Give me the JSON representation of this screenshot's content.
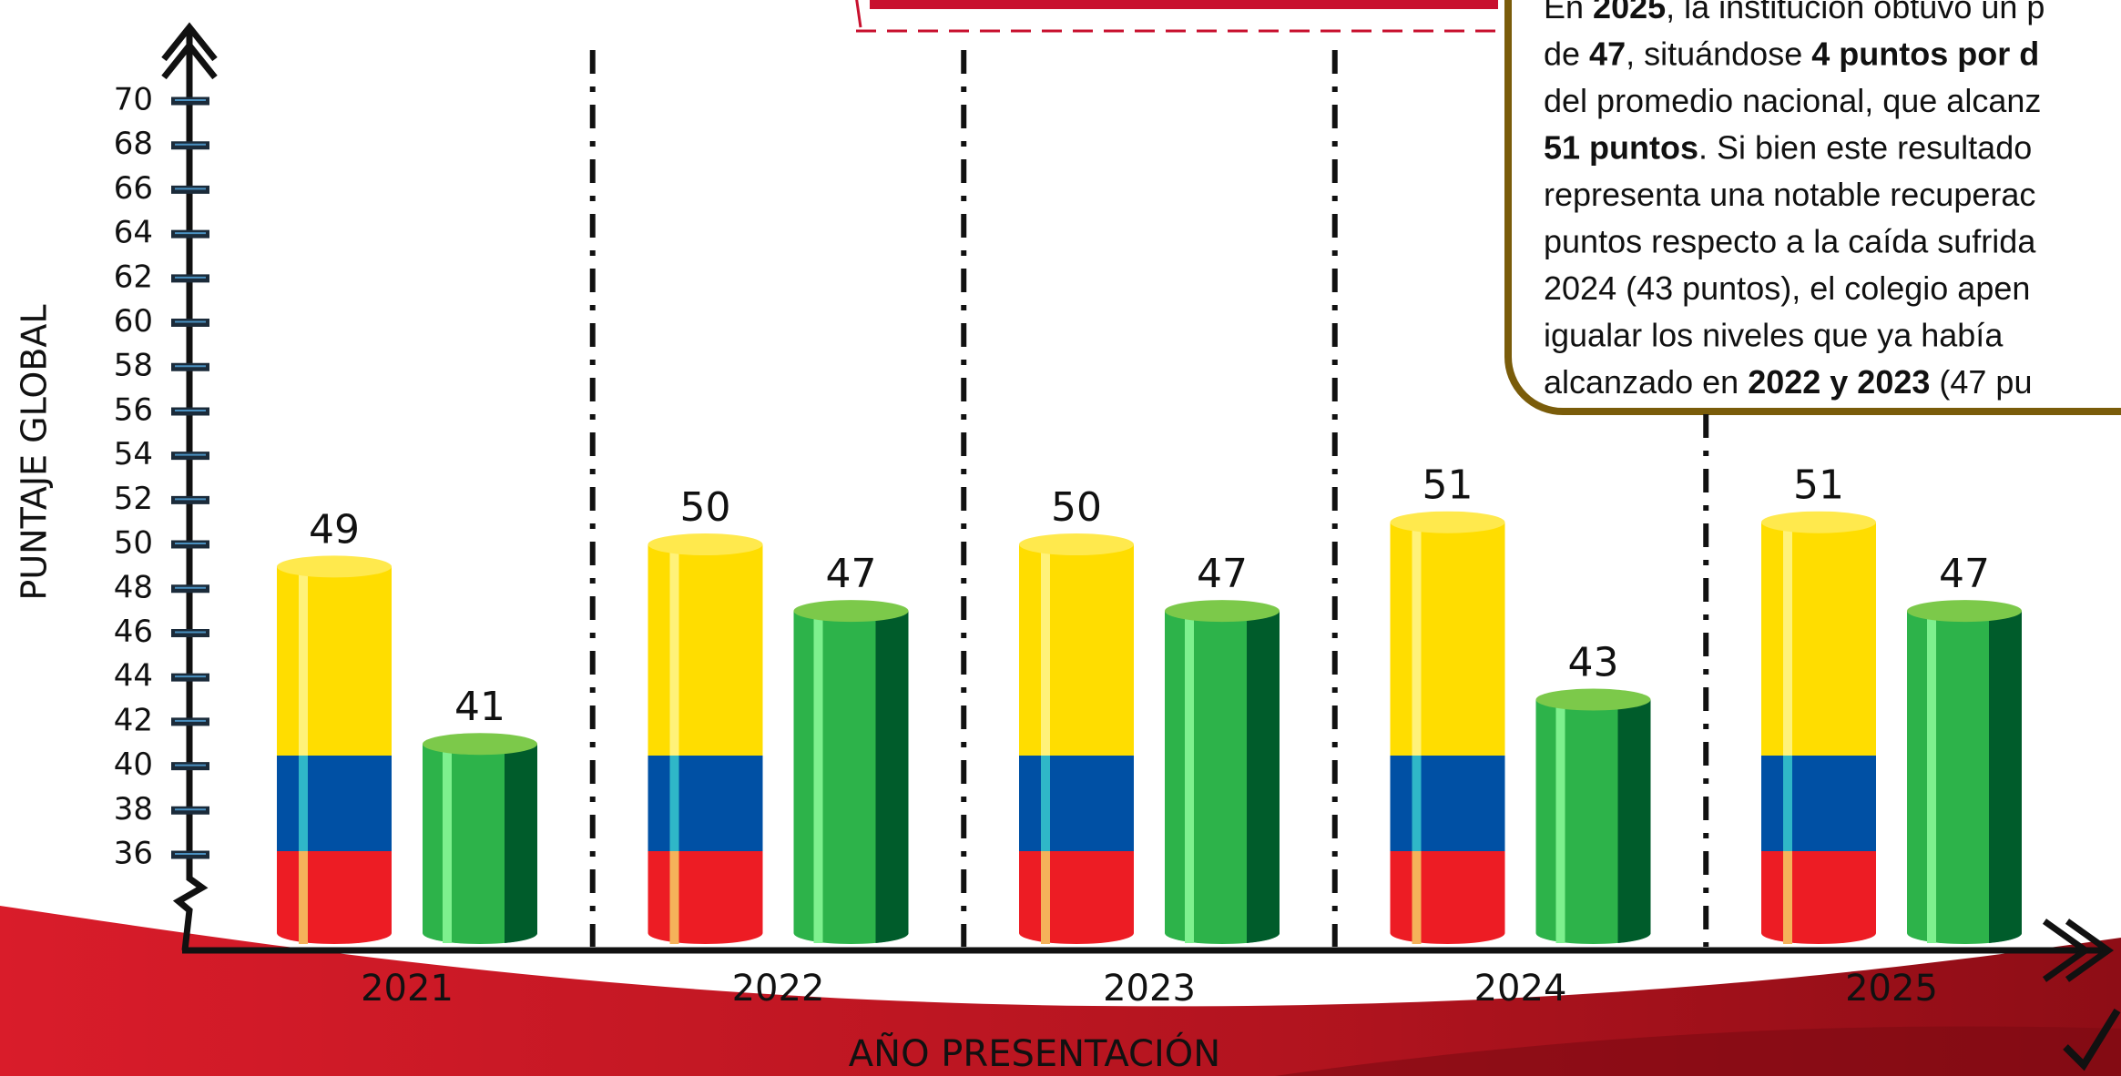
{
  "chart_data": {
    "type": "bar",
    "y_label": "PUNTAJE GLOBAL",
    "x_label": "AÑO PRESENTACIÓN",
    "categories": [
      "2021",
      "2022",
      "2023",
      "2024",
      "2025"
    ],
    "series": [
      {
        "color": "#ffdd00",
        "values": [
          49,
          50,
          50,
          51,
          51
        ]
      },
      {
        "color": "#2db34a",
        "values": [
          41,
          47,
          47,
          43,
          47
        ]
      }
    ],
    "ylim": [
      36,
      70
    ],
    "yticks": [
      36,
      38,
      40,
      42,
      44,
      46,
      48,
      50,
      52,
      54,
      56,
      58,
      60,
      62,
      64,
      66,
      68,
      70
    ],
    "annotation": {
      "lines": [
        [
          {
            "text": "En "
          },
          {
            "text": "2025",
            "bold": true
          },
          {
            "text": ", la institución obtuvo un p"
          }
        ],
        [
          {
            "text": "de "
          },
          {
            "text": "47",
            "bold": true
          },
          {
            "text": ", situándose "
          },
          {
            "text": "4 puntos por d",
            "bold": true
          }
        ],
        [
          {
            "text": "del promedio nacional, que alcanz"
          }
        ],
        [
          {
            "text": "51 puntos",
            "bold": true
          },
          {
            "text": ". Si bien este resultado"
          }
        ],
        [
          {
            "text": "representa una notable recuperac"
          }
        ],
        [
          {
            "text": "puntos respecto a la caída sufrida"
          }
        ],
        [
          {
            "text": "2024 (43 puntos), el colegio apen"
          }
        ],
        [
          {
            "text": "igualar los niveles que ya había"
          }
        ],
        [
          {
            "text": "alcanzado en "
          },
          {
            "text": "2022 y 2023",
            "bold": true
          },
          {
            "text": " (47 pu"
          }
        ]
      ]
    }
  }
}
